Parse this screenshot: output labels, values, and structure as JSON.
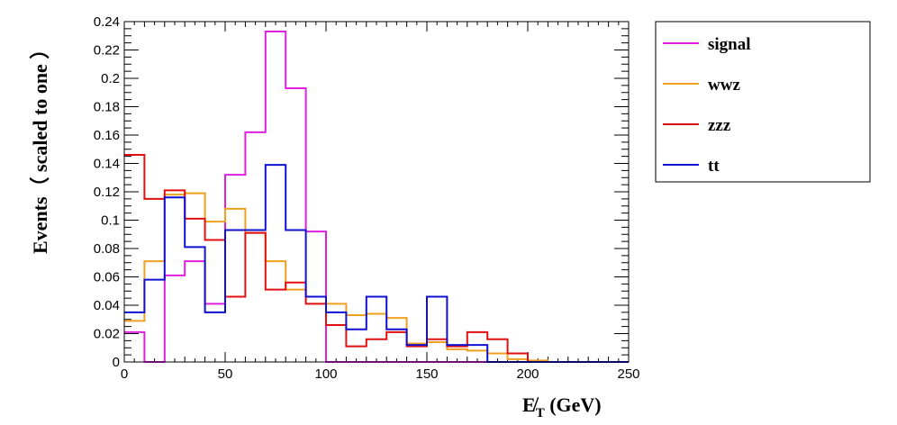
{
  "chart_data": {
    "type": "histogram-step",
    "bin_edges": [
      0,
      10,
      20,
      30,
      40,
      50,
      60,
      70,
      80,
      90,
      100,
      110,
      120,
      130,
      140,
      150,
      160,
      170,
      180,
      190,
      200,
      210,
      220,
      230,
      240,
      250
    ],
    "xlim": [
      0,
      250
    ],
    "ylim": [
      0,
      0.24
    ],
    "xticks": [
      0,
      50,
      100,
      150,
      200,
      250
    ],
    "xtick_labels": [
      "0",
      "50",
      "100",
      "150",
      "200",
      "250"
    ],
    "yticks": [
      0,
      0.02,
      0.04,
      0.06,
      0.08,
      0.1,
      0.12,
      0.14,
      0.16,
      0.18,
      0.2,
      0.22,
      0.24
    ],
    "ytick_labels": [
      "0",
      "0.02",
      "0.04",
      "0.06",
      "0.08",
      "0.1",
      "0.12",
      "0.14",
      "0.16",
      "0.18",
      "0.2",
      "0.22",
      "0.24"
    ],
    "xlabel": "E̸",
    "xlabel_sub": "T",
    "xlabel_unit": " (GeV)",
    "ylabel": "Events（ scaled to one ）",
    "legend_position": "top-right-outside",
    "series": [
      {
        "name": "signal",
        "color": "#e020e0",
        "values": [
          0.021,
          0.0,
          0.061,
          0.071,
          0.041,
          0.132,
          0.162,
          0.233,
          0.193,
          0.092,
          0.0,
          0.0,
          0.0,
          0.0,
          0.0,
          0.0,
          0.0,
          0.0,
          0.0,
          0.0,
          0.0,
          0.0,
          0.0,
          0.0,
          0.0
        ]
      },
      {
        "name": "wwz",
        "color": "#f0a020",
        "values": [
          0.029,
          0.071,
          0.118,
          0.119,
          0.099,
          0.108,
          0.091,
          0.071,
          0.051,
          0.046,
          0.041,
          0.033,
          0.034,
          0.031,
          0.013,
          0.014,
          0.009,
          0.008,
          0.006,
          0.002,
          0.001,
          0.0,
          0.0,
          0.0,
          0.0
        ]
      },
      {
        "name": "zzz",
        "color": "#e01010",
        "values": [
          0.146,
          0.115,
          0.121,
          0.101,
          0.086,
          0.046,
          0.091,
          0.051,
          0.056,
          0.041,
          0.026,
          0.011,
          0.016,
          0.021,
          0.011,
          0.016,
          0.011,
          0.021,
          0.016,
          0.006,
          0.0,
          0.0,
          0.0,
          0.0,
          0.0
        ]
      },
      {
        "name": "tt",
        "color": "#1010d0",
        "values": [
          0.035,
          0.058,
          0.116,
          0.081,
          0.035,
          0.093,
          0.093,
          0.139,
          0.093,
          0.046,
          0.035,
          0.023,
          0.046,
          0.023,
          0.012,
          0.046,
          0.012,
          0.012,
          0.0,
          0.0,
          0.0,
          0.0,
          0.0,
          0.0,
          0.0
        ]
      }
    ]
  }
}
